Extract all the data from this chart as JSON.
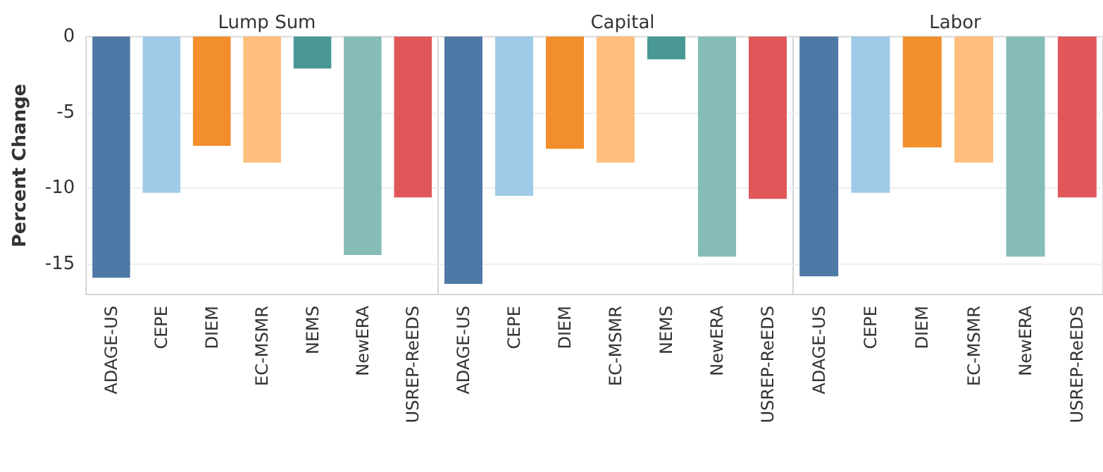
{
  "chart_data": [
    {
      "type": "bar",
      "title": "Lump Sum",
      "ylabel": "Percent Change",
      "categories": [
        "ADAGE-US",
        "CEPE",
        "DIEM",
        "EC-MSMR",
        "NEMS",
        "NewERA",
        "USREP-ReEDS"
      ],
      "values": [
        -15.9,
        -10.3,
        -7.2,
        -8.3,
        -2.1,
        -14.4,
        -10.6
      ],
      "colors": [
        "#4e79a7",
        "#a0cbe8",
        "#f28e2b",
        "#ffbe7d",
        "#499894",
        "#86bcb6",
        "#e15759"
      ],
      "ylim": [
        -17,
        0
      ],
      "yticks": [
        0,
        -5,
        -10,
        -15
      ],
      "grid": "y"
    },
    {
      "type": "bar",
      "title": "Capital",
      "categories": [
        "ADAGE-US",
        "CEPE",
        "DIEM",
        "EC-MSMR",
        "NEMS",
        "NewERA",
        "USREP-ReEDS"
      ],
      "values": [
        -16.3,
        -10.5,
        -7.4,
        -8.3,
        -1.5,
        -14.5,
        -10.7
      ],
      "colors": [
        "#4e79a7",
        "#a0cbe8",
        "#f28e2b",
        "#ffbe7d",
        "#499894",
        "#86bcb6",
        "#e15759"
      ],
      "ylim": [
        -17,
        0
      ],
      "yticks": [
        0,
        -5,
        -10,
        -15
      ],
      "grid": "y",
      "tick_labels": "x"
    },
    {
      "type": "bar",
      "title": "Labor",
      "categories": [
        "ADAGE-US",
        "CEPE",
        "DIEM",
        "EC-MSMR",
        "NewERA",
        "USREP-ReEDS"
      ],
      "values": [
        -15.8,
        -10.3,
        -7.3,
        -8.3,
        -14.5,
        -10.6
      ],
      "colors": [
        "#4e79a7",
        "#a0cbe8",
        "#f28e2b",
        "#ffbe7d",
        "#86bcb6",
        "#e15759"
      ],
      "ylim": [
        -17,
        0
      ],
      "yticks": [
        0,
        -5,
        -10,
        -15
      ],
      "grid": "y",
      "tick_labels": "x"
    }
  ]
}
